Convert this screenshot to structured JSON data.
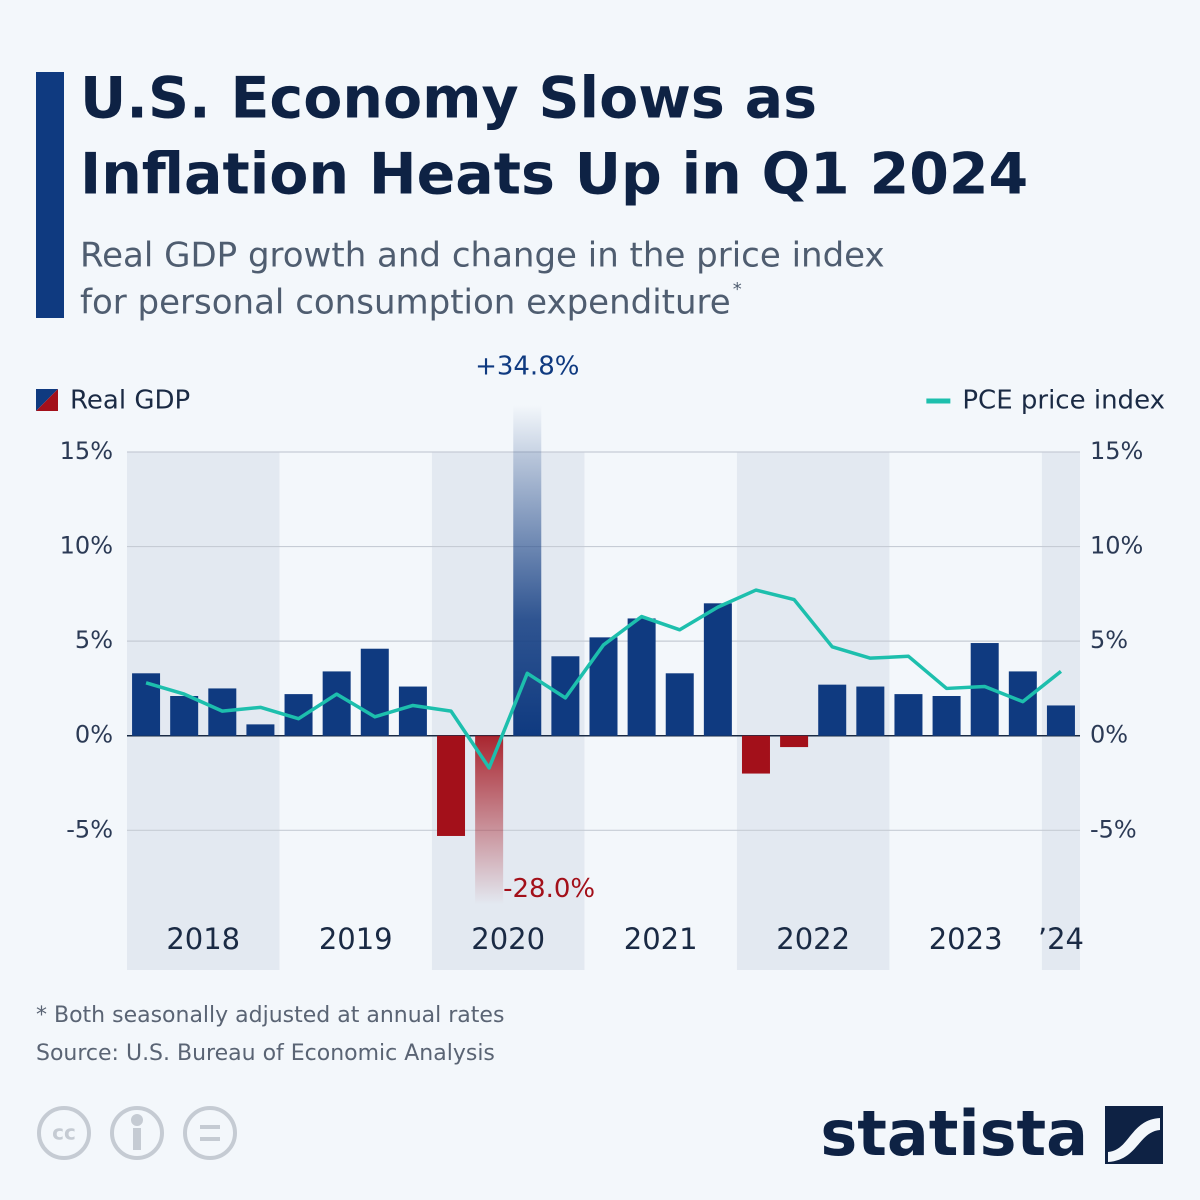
{
  "title_lines": [
    "U.S. Economy Slows as",
    "Inflation Heats Up in Q1 2024"
  ],
  "subtitle_lines": [
    "Real GDP growth and change in the price index",
    "for personal consumption expenditure"
  ],
  "subtitle_marker": "*",
  "chart_data": {
    "type": "bar_line",
    "categories": [
      "2018",
      null,
      null,
      null,
      "2019",
      null,
      null,
      null,
      "2020",
      null,
      null,
      null,
      "2021",
      null,
      null,
      null,
      "2022",
      null,
      null,
      null,
      "2023",
      null,
      null,
      null,
      "’24"
    ],
    "series": [
      {
        "name": "Real GDP",
        "type": "bar",
        "color": "#0f3a80",
        "negative_color": "#a3101a",
        "values": [
          3.3,
          2.1,
          2.5,
          0.6,
          2.2,
          3.4,
          4.6,
          2.6,
          -5.3,
          -28.0,
          34.8,
          4.2,
          5.2,
          6.2,
          3.3,
          7.0,
          -2.0,
          -0.6,
          2.7,
          2.6,
          2.2,
          2.1,
          4.9,
          3.4,
          1.6
        ],
        "value_labels": [
          null,
          null,
          null,
          null,
          null,
          null,
          null,
          null,
          null,
          "-28.0%",
          "+34.8%",
          null,
          null,
          null,
          null,
          null,
          null,
          null,
          null,
          null,
          null,
          null,
          null,
          null,
          null
        ]
      },
      {
        "name": "PCE price index",
        "type": "line",
        "axis": "y2",
        "color": "#1dbfad",
        "values": [
          2.8,
          2.2,
          1.3,
          1.5,
          0.9,
          2.2,
          1.0,
          1.6,
          1.3,
          -1.7,
          3.3,
          2.0,
          4.8,
          6.3,
          5.6,
          6.8,
          7.7,
          7.2,
          4.7,
          4.1,
          4.2,
          2.5,
          2.6,
          1.8,
          3.4
        ]
      }
    ],
    "ylim": [
      -8.5,
      15
    ],
    "yticks": [
      {
        "value": -5,
        "label": "-5%"
      },
      {
        "value": 0,
        "label": "0%"
      },
      {
        "value": 5,
        "label": "5%"
      },
      {
        "value": 10,
        "label": "10%"
      },
      {
        "value": 15,
        "label": "15%"
      }
    ],
    "y2lim": [
      -8.5,
      15
    ],
    "y2ticks": [
      {
        "value": -5,
        "label": "-5%"
      },
      {
        "value": 0,
        "label": "0%"
      },
      {
        "value": 5,
        "label": "5%"
      },
      {
        "value": 10,
        "label": "10%"
      },
      {
        "value": 15,
        "label": "15%"
      }
    ],
    "grid": true
  },
  "footnote": "* Both seasonally adjusted at annual rates",
  "source": "Source: U.S. Bureau of Economic Analysis",
  "brand": "statista"
}
